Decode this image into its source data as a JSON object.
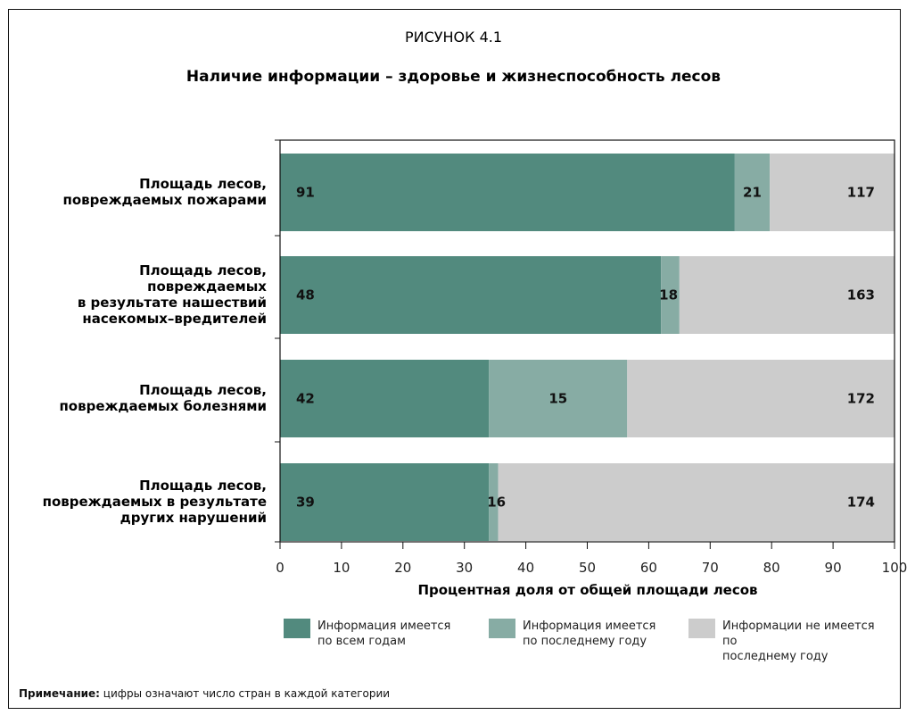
{
  "figure_label": "РИСУНОК 4.1",
  "title": "Наличие информации – здоровье и жизнеспособность лесов",
  "note": {
    "label": "Примечание:",
    "text": " цифры означают число стран в каждой категории"
  },
  "colors": {
    "all_years": "#528a7e",
    "last_year": "#87aca4",
    "none": "#cccccc"
  },
  "chart_data": {
    "type": "bar",
    "orientation": "horizontal",
    "stacked": true,
    "categories": [
      [
        "Площадь лесов,",
        "повреждаемых пожарами"
      ],
      [
        "Площадь лесов,",
        "повреждаемых",
        "в результате нашествий",
        "насекомых–вредителей"
      ],
      [
        "Площадь лесов,",
        "повреждаемых болезнями"
      ],
      [
        "Площадь лесов,",
        "повреждаемых в результате",
        "других нарушений"
      ]
    ],
    "series": [
      {
        "name": "Информация имеется по всем годам",
        "legend_lines": [
          "Информация имеется",
          "по всем годам"
        ],
        "percent": [
          74,
          62,
          34,
          34
        ],
        "labels": [
          91,
          48,
          42,
          39
        ]
      },
      {
        "name": "Информация имеется по последнему году",
        "legend_lines": [
          "Информация имеется",
          "по последнему году"
        ],
        "percent": [
          5.7,
          3,
          22.5,
          1.5
        ],
        "labels": [
          21,
          18,
          15,
          16
        ]
      },
      {
        "name": "Информации не имеется по последнему году",
        "legend_lines": [
          "Информации не имеется по",
          "последнему году"
        ],
        "percent": [
          20.3,
          35,
          43.5,
          64.5
        ],
        "labels": [
          117,
          163,
          172,
          174
        ]
      }
    ],
    "xlabel": "Процентная доля от общей площади лесов",
    "xlim": [
      0,
      100
    ],
    "xticks": [
      0,
      10,
      20,
      30,
      40,
      50,
      60,
      70,
      80,
      90,
      100
    ],
    "legend_position": "bottom",
    "grid": false
  }
}
